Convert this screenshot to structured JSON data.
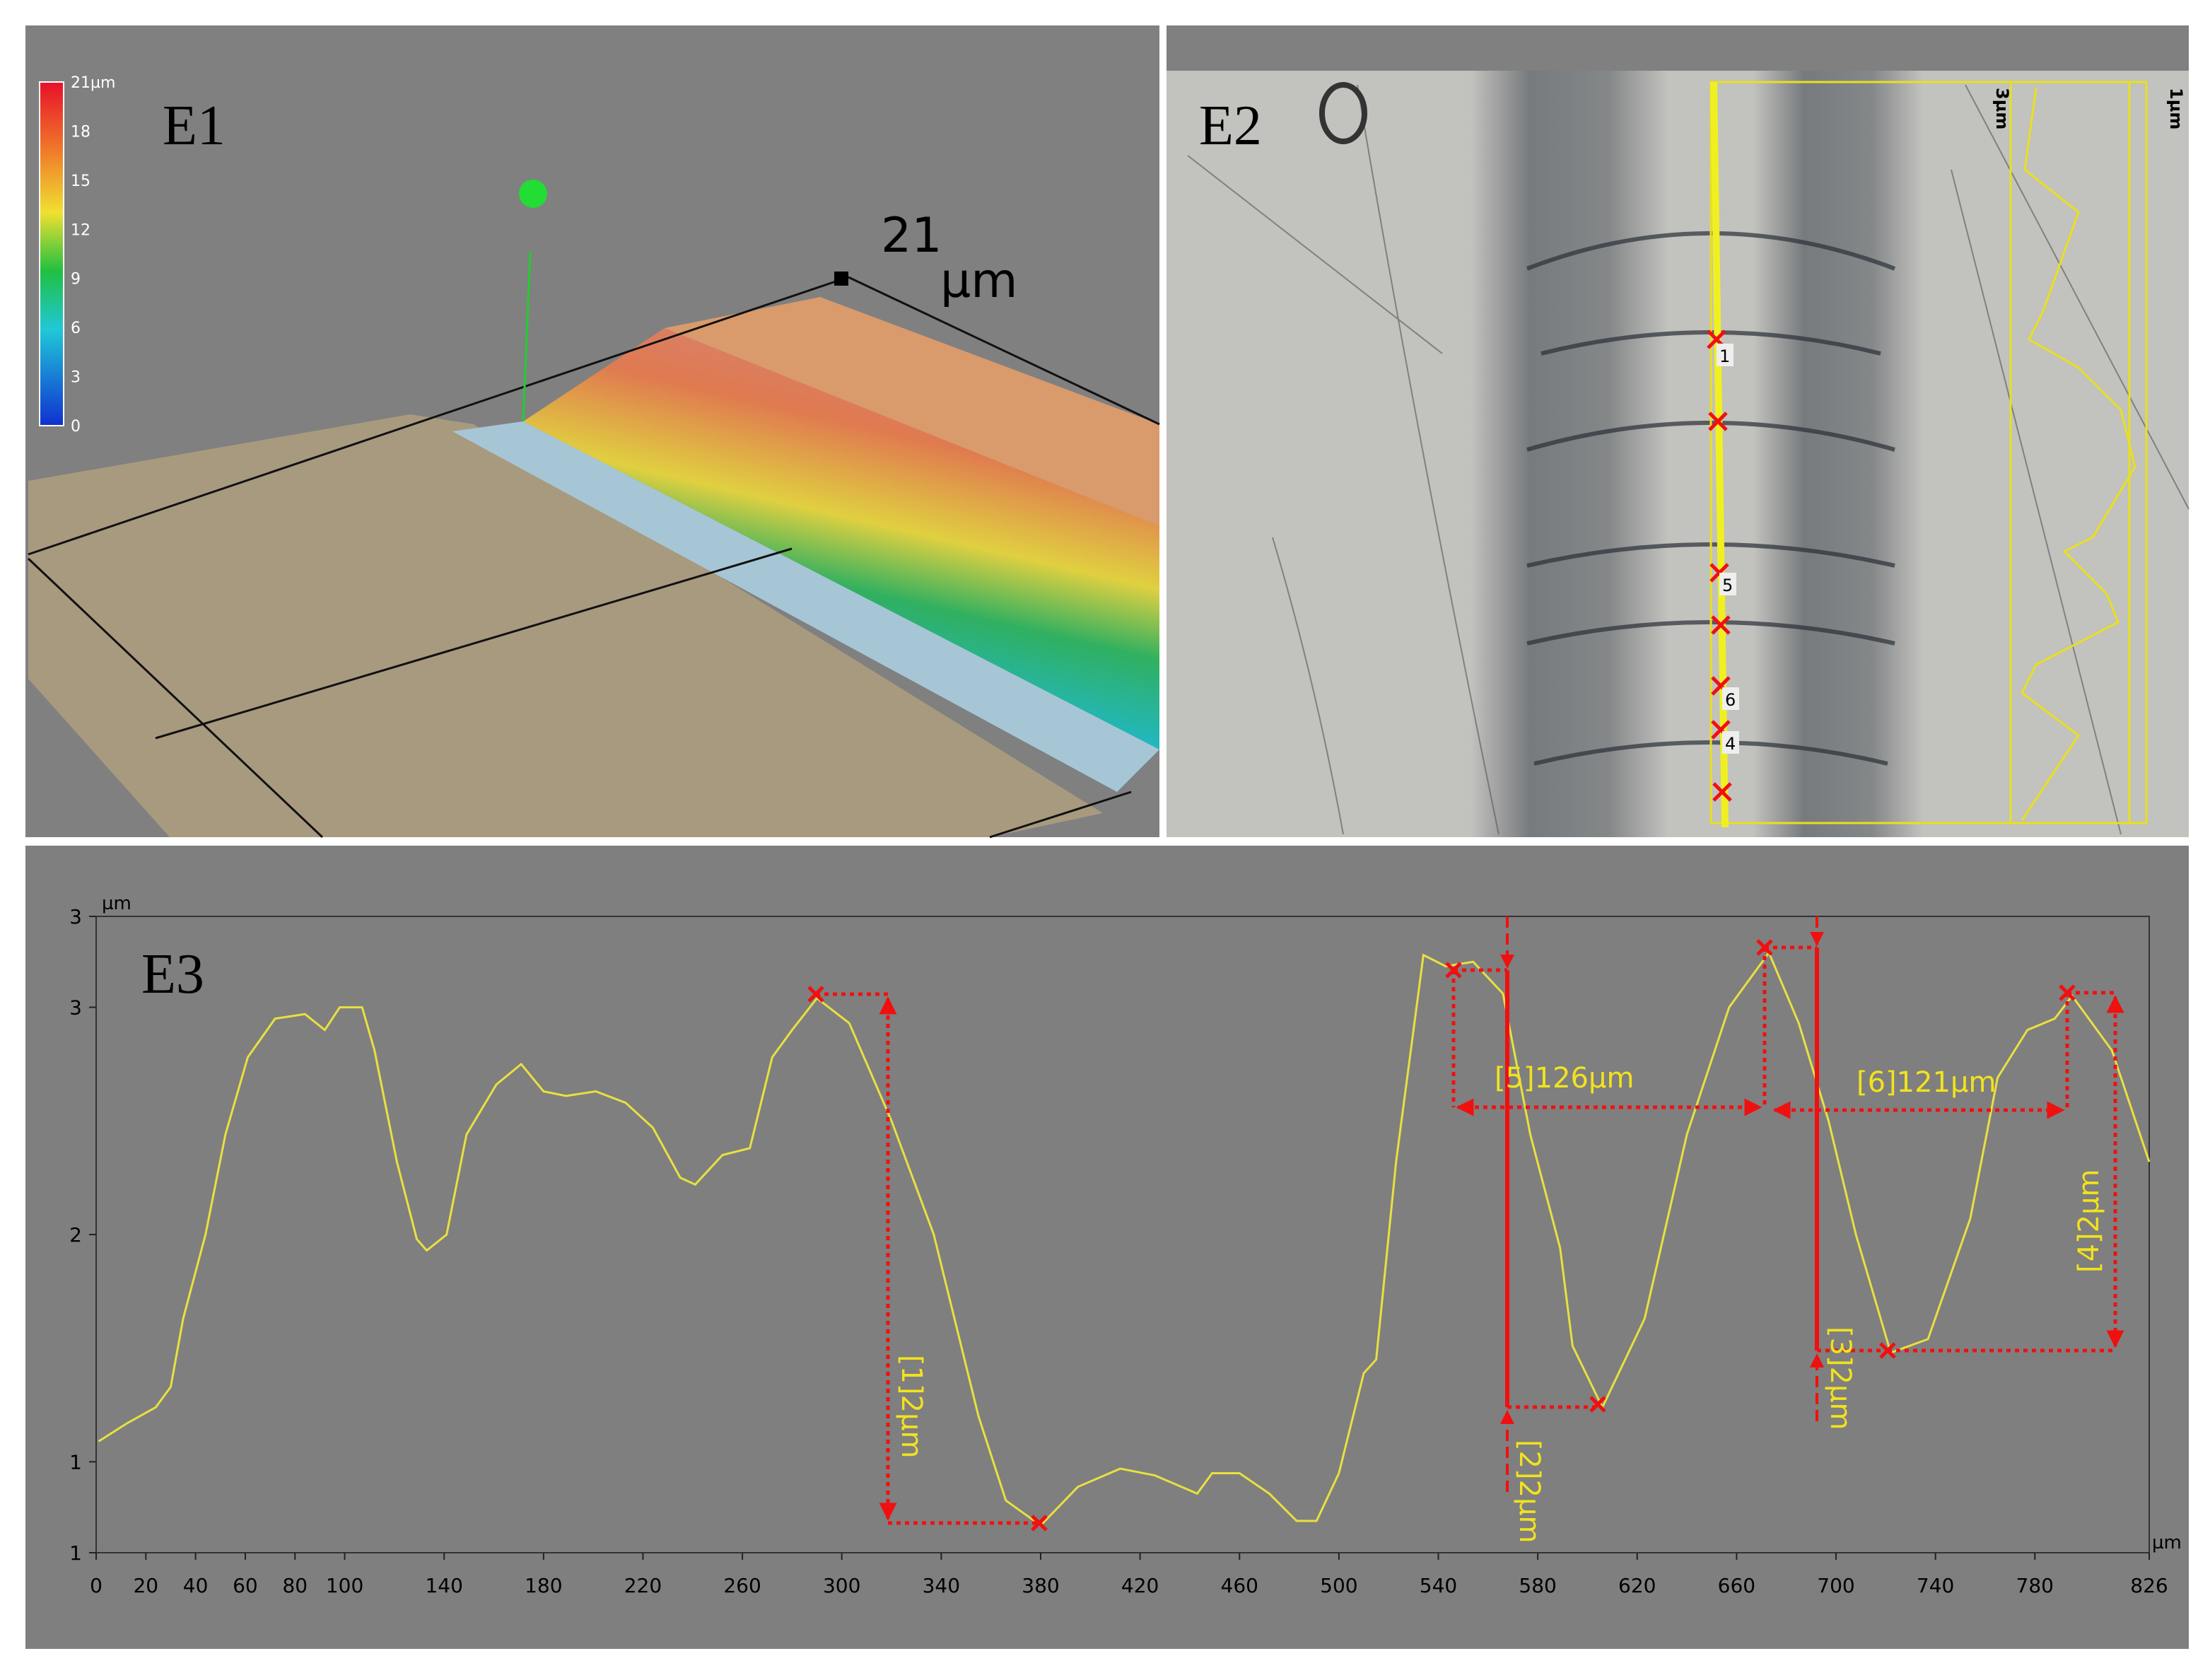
{
  "panels": {
    "e1": {
      "label": "E1",
      "colorbar_ticks": [
        {
          "value": 21,
          "label": "21µm"
        },
        18,
        15,
        12,
        9,
        6,
        3,
        0
      ],
      "height_value": "21",
      "height_unit": "µm"
    },
    "e2": {
      "label": "E2",
      "markers": [
        "1",
        "5",
        "6",
        "4"
      ],
      "scale_labels": [
        "3µm",
        "1µm"
      ]
    }
  },
  "chart_data": {
    "type": "line",
    "label": "E3",
    "y_unit": "µm",
    "x_unit": "µm",
    "x": [
      1,
      12.5,
      24,
      30,
      35,
      44,
      52,
      61,
      72,
      84,
      92,
      98,
      107,
      112,
      121,
      129,
      133,
      141,
      149,
      161,
      171,
      180,
      189,
      201,
      213,
      224,
      235,
      241,
      252,
      263,
      272,
      280,
      290,
      303,
      320,
      337,
      355,
      366,
      380,
      395,
      412,
      426,
      443,
      449,
      460,
      472,
      483,
      491,
      500,
      510,
      515,
      523,
      534,
      543,
      554,
      566,
      577,
      589,
      594,
      606,
      623,
      640,
      657,
      673,
      685,
      697,
      708,
      722,
      737,
      754,
      765,
      777,
      788,
      795,
      811,
      826
    ],
    "series": [
      {
        "color": "#e8e040",
        "values": [
          1.09,
          1.17,
          1.24,
          1.33,
          1.63,
          2.0,
          2.44,
          2.78,
          2.95,
          2.97,
          2.9,
          3.0,
          3.0,
          2.81,
          2.32,
          1.98,
          1.93,
          2.0,
          2.44,
          2.66,
          2.75,
          2.63,
          2.61,
          2.63,
          2.58,
          2.47,
          2.25,
          2.22,
          2.35,
          2.38,
          2.78,
          2.9,
          3.04,
          2.93,
          2.5,
          2.0,
          1.2,
          0.83,
          0.72,
          0.89,
          0.97,
          0.94,
          0.86,
          0.95,
          0.95,
          0.86,
          0.74,
          0.74,
          0.95,
          1.39,
          1.45,
          2.32,
          3.23,
          3.18,
          3.2,
          3.06,
          2.44,
          1.94,
          1.51,
          1.24,
          1.63,
          2.44,
          3.0,
          3.24,
          2.93,
          2.5,
          2.0,
          1.48,
          1.54,
          2.07,
          2.69,
          2.9,
          2.95,
          3.05,
          2.81,
          2.32
        ]
      }
    ],
    "xlim": [
      0,
      826
    ],
    "ylim": [
      0.6,
      3.4
    ],
    "xticks": [
      0,
      20,
      40,
      60,
      80,
      100,
      140,
      180,
      220,
      260,
      300,
      340,
      380,
      420,
      460,
      500,
      540,
      580,
      620,
      660,
      700,
      740,
      780,
      826
    ],
    "yticks": [
      {
        "value": 3.4,
        "label": "3"
      },
      3,
      2,
      1,
      {
        "value": 0.6,
        "label": "1"
      }
    ],
    "grid": false,
    "annotations": [
      "[1]2µm",
      "[2]2µm",
      "[3]2µm",
      "[4]2µm",
      "[5]126µm",
      "[6]121µm"
    ]
  }
}
